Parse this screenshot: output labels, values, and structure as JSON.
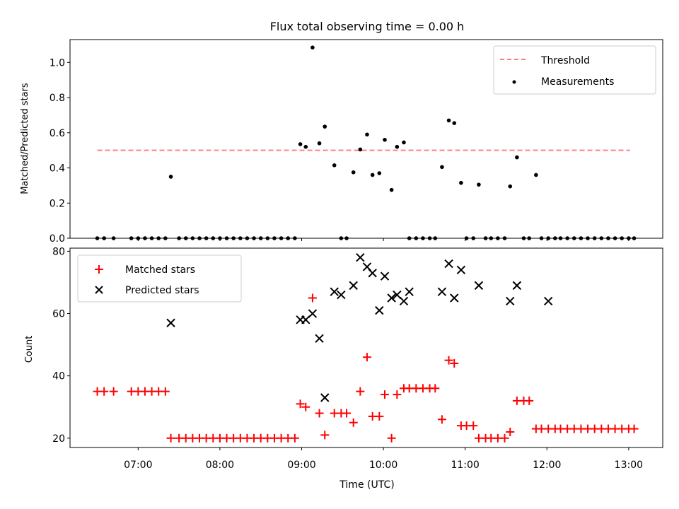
{
  "chart_data": [
    {
      "type": "scatter",
      "title": "Flux total observing time = 0.00 h",
      "xlabel": "",
      "ylabel": "Matched/Predicted stars",
      "xlim": [
        "06:10",
        "13:25"
      ],
      "ylim": [
        0,
        1.13
      ],
      "yticks": [
        0.0,
        0.2,
        0.4,
        0.6,
        0.8,
        1.0
      ],
      "ytick_labels": [
        "0.0",
        "0.2",
        "0.4",
        "0.6",
        "0.8",
        "1.0"
      ],
      "legend_position": "top-right",
      "series": [
        {
          "name": "Threshold",
          "style": "dashed-line",
          "color": "#ff7f7f",
          "x": [
            "06:30",
            "13:01"
          ],
          "y": [
            0.5,
            0.5
          ]
        },
        {
          "name": "Measurements",
          "style": "dot",
          "color": "#000000",
          "x": [
            "06:30",
            "06:35",
            "06:42",
            "06:55",
            "07:00",
            "07:05",
            "07:10",
            "07:15",
            "07:20",
            "07:24",
            "07:30",
            "07:35",
            "07:40",
            "07:45",
            "07:50",
            "07:55",
            "08:00",
            "08:05",
            "08:10",
            "08:15",
            "08:20",
            "08:25",
            "08:30",
            "08:35",
            "08:40",
            "08:45",
            "08:50",
            "08:55",
            "08:59",
            "09:03",
            "09:08",
            "09:13",
            "09:17",
            "09:24",
            "09:29",
            "09:33",
            "09:38",
            "09:43",
            "09:48",
            "09:52",
            "09:57",
            "10:01",
            "10:06",
            "10:10",
            "10:15",
            "10:19",
            "10:24",
            "10:29",
            "10:34",
            "10:38",
            "10:43",
            "10:48",
            "10:52",
            "10:57",
            "11:01",
            "11:06",
            "11:10",
            "11:15",
            "11:19",
            "11:24",
            "11:29",
            "11:33",
            "11:38",
            "11:43",
            "11:47",
            "11:52",
            "11:56",
            "12:01",
            "12:06",
            "12:10",
            "12:15",
            "12:20",
            "12:25",
            "12:30",
            "12:35",
            "12:40",
            "12:45",
            "12:50",
            "12:55",
            "13:00",
            "13:04"
          ],
          "y": [
            0,
            0,
            0,
            0,
            0,
            0,
            0,
            0,
            0,
            0.35,
            0,
            0,
            0,
            0,
            0,
            0,
            0,
            0,
            0,
            0,
            0,
            0,
            0,
            0,
            0,
            0,
            0,
            0,
            0.535,
            0.52,
            1.085,
            0.54,
            0.635,
            0.415,
            0,
            0,
            0.375,
            0.505,
            0.59,
            0.36,
            0.37,
            0.56,
            0.275,
            0.52,
            0.545,
            0,
            0,
            0,
            0,
            0,
            0.405,
            0.67,
            0.655,
            0.315,
            0,
            0,
            0.305,
            0,
            0,
            0,
            0,
            0.295,
            0.46,
            0,
            0,
            0.36,
            0,
            0,
            0,
            0,
            0,
            0,
            0,
            0,
            0,
            0,
            0,
            0,
            0,
            0,
            0
          ]
        }
      ]
    },
    {
      "type": "scatter",
      "title": "",
      "xlabel": "Time (UTC)",
      "ylabel": "Count",
      "xlim": [
        "06:10",
        "13:25"
      ],
      "ylim": [
        17,
        81
      ],
      "xticks": [
        "07:00",
        "08:00",
        "09:00",
        "10:00",
        "11:00",
        "12:00",
        "13:00"
      ],
      "yticks": [
        20,
        40,
        60,
        80
      ],
      "ytick_labels": [
        "20",
        "40",
        "60",
        "80"
      ],
      "legend_position": "top-left",
      "series": [
        {
          "name": "Matched stars",
          "marker": "plus",
          "color": "#ff0000",
          "x": [
            "06:30",
            "06:35",
            "06:42",
            "06:55",
            "07:00",
            "07:05",
            "07:10",
            "07:15",
            "07:20",
            "07:24",
            "07:30",
            "07:35",
            "07:40",
            "07:45",
            "07:50",
            "07:55",
            "08:00",
            "08:05",
            "08:10",
            "08:15",
            "08:20",
            "08:25",
            "08:30",
            "08:35",
            "08:40",
            "08:45",
            "08:50",
            "08:55",
            "08:59",
            "09:03",
            "09:08",
            "09:13",
            "09:17",
            "09:24",
            "09:29",
            "09:33",
            "09:38",
            "09:43",
            "09:48",
            "09:52",
            "09:57",
            "10:01",
            "10:06",
            "10:10",
            "10:15",
            "10:19",
            "10:24",
            "10:29",
            "10:34",
            "10:38",
            "10:43",
            "10:48",
            "10:52",
            "10:57",
            "11:01",
            "11:06",
            "11:10",
            "11:15",
            "11:19",
            "11:24",
            "11:29",
            "11:33",
            "11:38",
            "11:43",
            "11:47",
            "11:52",
            "11:56",
            "12:01",
            "12:06",
            "12:10",
            "12:15",
            "12:20",
            "12:25",
            "12:30",
            "12:35",
            "12:40",
            "12:45",
            "12:50",
            "12:55",
            "13:00",
            "13:04"
          ],
          "y": [
            35,
            35,
            35,
            35,
            35,
            35,
            35,
            35,
            35,
            20,
            20,
            20,
            20,
            20,
            20,
            20,
            20,
            20,
            20,
            20,
            20,
            20,
            20,
            20,
            20,
            20,
            20,
            20,
            31,
            30,
            65,
            28,
            21,
            28,
            28,
            28,
            25,
            35,
            46,
            27,
            27,
            34,
            20,
            34,
            36,
            36,
            36,
            36,
            36,
            36,
            26,
            45,
            44,
            24,
            24,
            24,
            20,
            20,
            20,
            20,
            20,
            22,
            32,
            32,
            32,
            23,
            23,
            23,
            23,
            23,
            23,
            23,
            23,
            23,
            23,
            23,
            23,
            23,
            23,
            23,
            23
          ]
        },
        {
          "name": "Predicted stars",
          "marker": "x",
          "color": "#000000",
          "x": [
            "07:24",
            "08:59",
            "09:03",
            "09:08",
            "09:13",
            "09:17",
            "09:24",
            "09:29",
            "09:38",
            "09:43",
            "09:48",
            "09:52",
            "09:57",
            "10:01",
            "10:06",
            "10:10",
            "10:15",
            "10:19",
            "10:43",
            "10:48",
            "10:52",
            "10:57",
            "11:10",
            "11:33",
            "11:38",
            "12:01"
          ],
          "y": [
            57,
            58,
            58,
            60,
            52,
            33,
            67,
            66,
            69,
            78,
            75,
            73,
            61,
            72,
            65,
            66,
            64,
            67,
            67,
            76,
            65,
            74,
            69,
            64,
            69,
            64
          ]
        }
      ]
    }
  ]
}
